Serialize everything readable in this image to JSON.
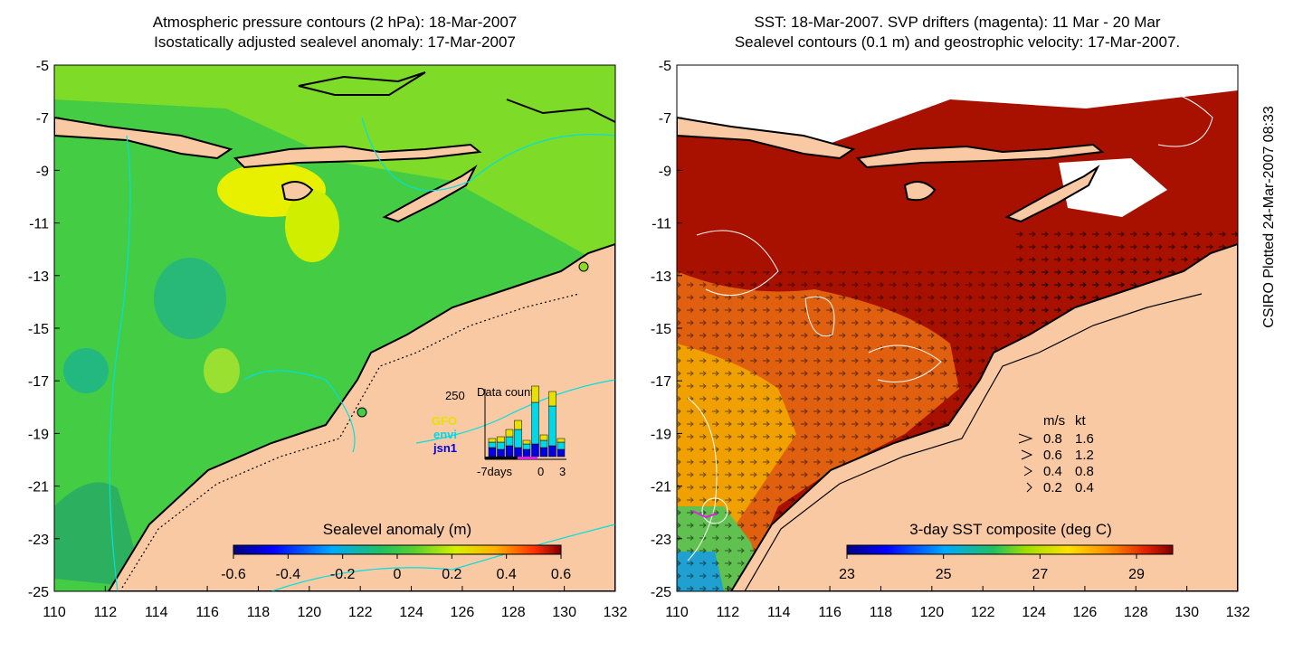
{
  "left_panel": {
    "title_line1": "Atmospheric pressure contours (2 hPa): 18-Mar-2007",
    "title_line2": "Isostatically adjusted sealevel anomaly: 17-Mar-2007",
    "colorbar_label": "Sealevel anomaly (m)",
    "colorbar_ticks": [
      "-0.6",
      "-0.4",
      "-0.2",
      "0",
      "0.2",
      "0.4",
      "0.6"
    ],
    "inset": {
      "title": "Data count",
      "y_tick": "250",
      "x_ticks": [
        "-7days",
        "0",
        "3"
      ],
      "legend": [
        {
          "name": "GFO",
          "color": "#e8e000"
        },
        {
          "name": "envi",
          "color": "#00d8e8"
        },
        {
          "name": "jsn1",
          "color": "#0000e0"
        }
      ]
    }
  },
  "right_panel": {
    "title_line1": "SST: 18-Mar-2007. SVP drifters (magenta): 11 Mar - 20 Mar",
    "title_line2": "Sealevel contours (0.1 m) and geostrophic velocity: 17-Mar-2007.",
    "colorbar_label": "3-day SST composite (deg C)",
    "colorbar_ticks": [
      "23",
      "25",
      "27",
      "29"
    ],
    "velocity_legend": {
      "header_ms": "m/s",
      "header_kt": "kt",
      "rows": [
        {
          "ms": "0.8",
          "kt": "1.6"
        },
        {
          "ms": "0.6",
          "kt": "1.2"
        },
        {
          "ms": "0.4",
          "kt": "0.8"
        },
        {
          "ms": "0.2",
          "kt": "0.4"
        }
      ]
    }
  },
  "axes": {
    "y_ticks": [
      "-5",
      "-7",
      "-9",
      "-11",
      "-13",
      "-15",
      "-17",
      "-19",
      "-21",
      "-23",
      "-25"
    ],
    "x_ticks": [
      "110",
      "112",
      "114",
      "116",
      "118",
      "120",
      "122",
      "124",
      "126",
      "128",
      "130",
      "132"
    ]
  },
  "credit": "CSIRO Plotted 24-Mar-2007 08:33",
  "colors": {
    "land": "#f9c9a3",
    "sla_green": "#33cc33",
    "sst_red": "#a81000",
    "contour_cyan": "#00e0e0",
    "drifter_magenta": "#e020e0"
  }
}
